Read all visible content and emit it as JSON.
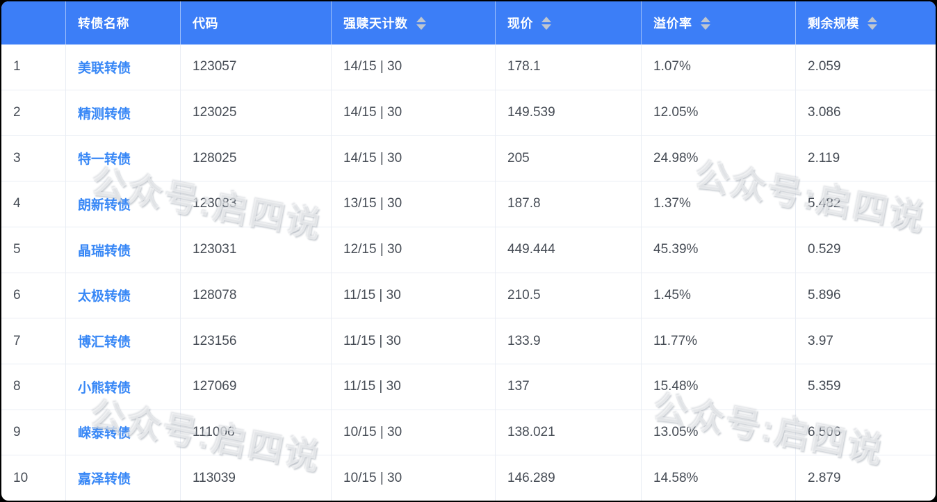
{
  "table": {
    "columns": [
      {
        "key": "index",
        "label": "",
        "sortable": false
      },
      {
        "key": "name",
        "label": "转债名称",
        "sortable": false
      },
      {
        "key": "code",
        "label": "代码",
        "sortable": false
      },
      {
        "key": "days",
        "label": "强赎天计数",
        "sortable": true
      },
      {
        "key": "price",
        "label": "现价",
        "sortable": true
      },
      {
        "key": "premium",
        "label": "溢价率",
        "sortable": true
      },
      {
        "key": "size",
        "label": "剩余规模",
        "sortable": true
      }
    ],
    "rows": [
      {
        "index": "1",
        "name": "美联转债",
        "code": "123057",
        "days": "14/15 | 30",
        "price": "178.1",
        "premium": "1.07%",
        "size": "2.059"
      },
      {
        "index": "2",
        "name": "精测转债",
        "code": "123025",
        "days": "14/15 | 30",
        "price": "149.539",
        "premium": "12.05%",
        "size": "3.086"
      },
      {
        "index": "3",
        "name": "特一转债",
        "code": "128025",
        "days": "14/15 | 30",
        "price": "205",
        "premium": "24.98%",
        "size": "2.119"
      },
      {
        "index": "4",
        "name": "朗新转债",
        "code": "123083",
        "days": "13/15 | 30",
        "price": "187.8",
        "premium": "1.37%",
        "size": "5.482"
      },
      {
        "index": "5",
        "name": "晶瑞转债",
        "code": "123031",
        "days": "12/15 | 30",
        "price": "449.444",
        "premium": "45.39%",
        "size": "0.529"
      },
      {
        "index": "6",
        "name": "太极转债",
        "code": "128078",
        "days": "11/15 | 30",
        "price": "210.5",
        "premium": "1.45%",
        "size": "5.896"
      },
      {
        "index": "7",
        "name": "博汇转债",
        "code": "123156",
        "days": "11/15 | 30",
        "price": "133.9",
        "premium": "11.77%",
        "size": "3.97"
      },
      {
        "index": "8",
        "name": "小熊转债",
        "code": "127069",
        "days": "11/15 | 30",
        "price": "137",
        "premium": "15.48%",
        "size": "5.359"
      },
      {
        "index": "9",
        "name": "嵘泰转债",
        "code": "111006",
        "days": "10/15 | 30",
        "price": "138.021",
        "premium": "13.05%",
        "size": "6.506"
      },
      {
        "index": "10",
        "name": "嘉泽转债",
        "code": "113039",
        "days": "10/15 | 30",
        "price": "146.289",
        "premium": "14.58%",
        "size": "2.879"
      }
    ]
  },
  "watermark": {
    "text": "公众号:启四说"
  },
  "colors": {
    "header_bg": "#3C7EF7",
    "header_text": "#FFFFFF",
    "link": "#3787F6",
    "body_text": "#464C55",
    "row_border": "#E9EDF4",
    "sort_caret": "#BFC6D0"
  }
}
